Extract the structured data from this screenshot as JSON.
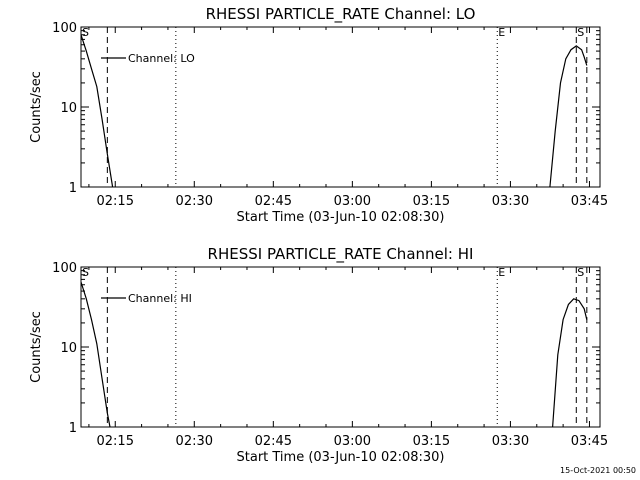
{
  "footer": {
    "timestamp": "15-Oct-2021 00:50"
  },
  "chart_data": [
    {
      "type": "line",
      "title": "RHESSI PARTICLE_RATE Channel: LO",
      "xlabel": "Start Time (03-Jun-10 02:08:30)",
      "ylabel": "Counts/sec",
      "yscale": "log",
      "ylim": [
        1,
        100
      ],
      "xlim": [
        "02:08:30",
        "03:47:00"
      ],
      "xticks": [
        "02:15",
        "02:30",
        "02:45",
        "03:00",
        "03:15",
        "03:30",
        "03:45"
      ],
      "yticks": [
        "1",
        "10",
        "100"
      ],
      "legend": {
        "label": "Channel: LO",
        "placement": "top-left"
      },
      "markers": [
        {
          "label": "S",
          "time": "02:08:30",
          "style": "solid"
        },
        {
          "label": "",
          "time": "02:13:30",
          "style": "dashed"
        },
        {
          "label": "",
          "time": "02:26:30",
          "style": "dotted"
        },
        {
          "label": "E",
          "time": "03:27:30",
          "style": "dotted"
        },
        {
          "label": "S",
          "time": "03:42:30",
          "style": "dashed"
        },
        {
          "label": "",
          "time": "03:44:30",
          "style": "dashed"
        }
      ],
      "series": [
        {
          "name": "Channel: LO",
          "segments": [
            [
              [
                "02:08:30",
                80
              ],
              [
                "02:09:30",
                50
              ],
              [
                "02:10:30",
                30
              ],
              [
                "02:11:30",
                18
              ],
              [
                "02:12:30",
                7
              ],
              [
                "02:13:30",
                2.6
              ],
              [
                "02:14:30",
                1
              ]
            ],
            [
              [
                "03:37:30",
                1
              ],
              [
                "03:38:30",
                5
              ],
              [
                "03:39:30",
                20
              ],
              [
                "03:40:30",
                40
              ],
              [
                "03:41:30",
                52
              ],
              [
                "03:42:30",
                58
              ],
              [
                "03:43:30",
                52
              ],
              [
                "03:44:00",
                42
              ],
              [
                "03:44:30",
                33
              ]
            ]
          ]
        }
      ]
    },
    {
      "type": "line",
      "title": "RHESSI PARTICLE_RATE Channel: HI",
      "xlabel": "Start Time (03-Jun-10 02:08:30)",
      "ylabel": "Counts/sec",
      "yscale": "log",
      "ylim": [
        1,
        100
      ],
      "xlim": [
        "02:08:30",
        "03:47:00"
      ],
      "xticks": [
        "02:15",
        "02:30",
        "02:45",
        "03:00",
        "03:15",
        "03:30",
        "03:45"
      ],
      "yticks": [
        "1",
        "10",
        "100"
      ],
      "legend": {
        "label": "Channel: HI",
        "placement": "top-left"
      },
      "markers": [
        {
          "label": "S",
          "time": "02:08:30",
          "style": "solid"
        },
        {
          "label": "",
          "time": "02:13:30",
          "style": "dashed"
        },
        {
          "label": "",
          "time": "02:26:30",
          "style": "dotted"
        },
        {
          "label": "E",
          "time": "03:27:30",
          "style": "dotted"
        },
        {
          "label": "S",
          "time": "03:42:30",
          "style": "dashed"
        },
        {
          "label": "",
          "time": "03:44:30",
          "style": "dashed"
        }
      ],
      "series": [
        {
          "name": "Channel: HI",
          "segments": [
            [
              [
                "02:08:30",
                65
              ],
              [
                "02:09:30",
                40
              ],
              [
                "02:10:30",
                22
              ],
              [
                "02:11:30",
                11
              ],
              [
                "02:12:30",
                4
              ],
              [
                "02:13:30",
                1.5
              ],
              [
                "02:14:00",
                1
              ]
            ],
            [
              [
                "03:38:00",
                1
              ],
              [
                "03:39:00",
                8
              ],
              [
                "03:40:00",
                22
              ],
              [
                "03:41:00",
                34
              ],
              [
                "03:42:00",
                40
              ],
              [
                "03:43:00",
                38
              ],
              [
                "03:44:00",
                30
              ],
              [
                "03:44:30",
                22
              ]
            ]
          ]
        }
      ]
    }
  ]
}
